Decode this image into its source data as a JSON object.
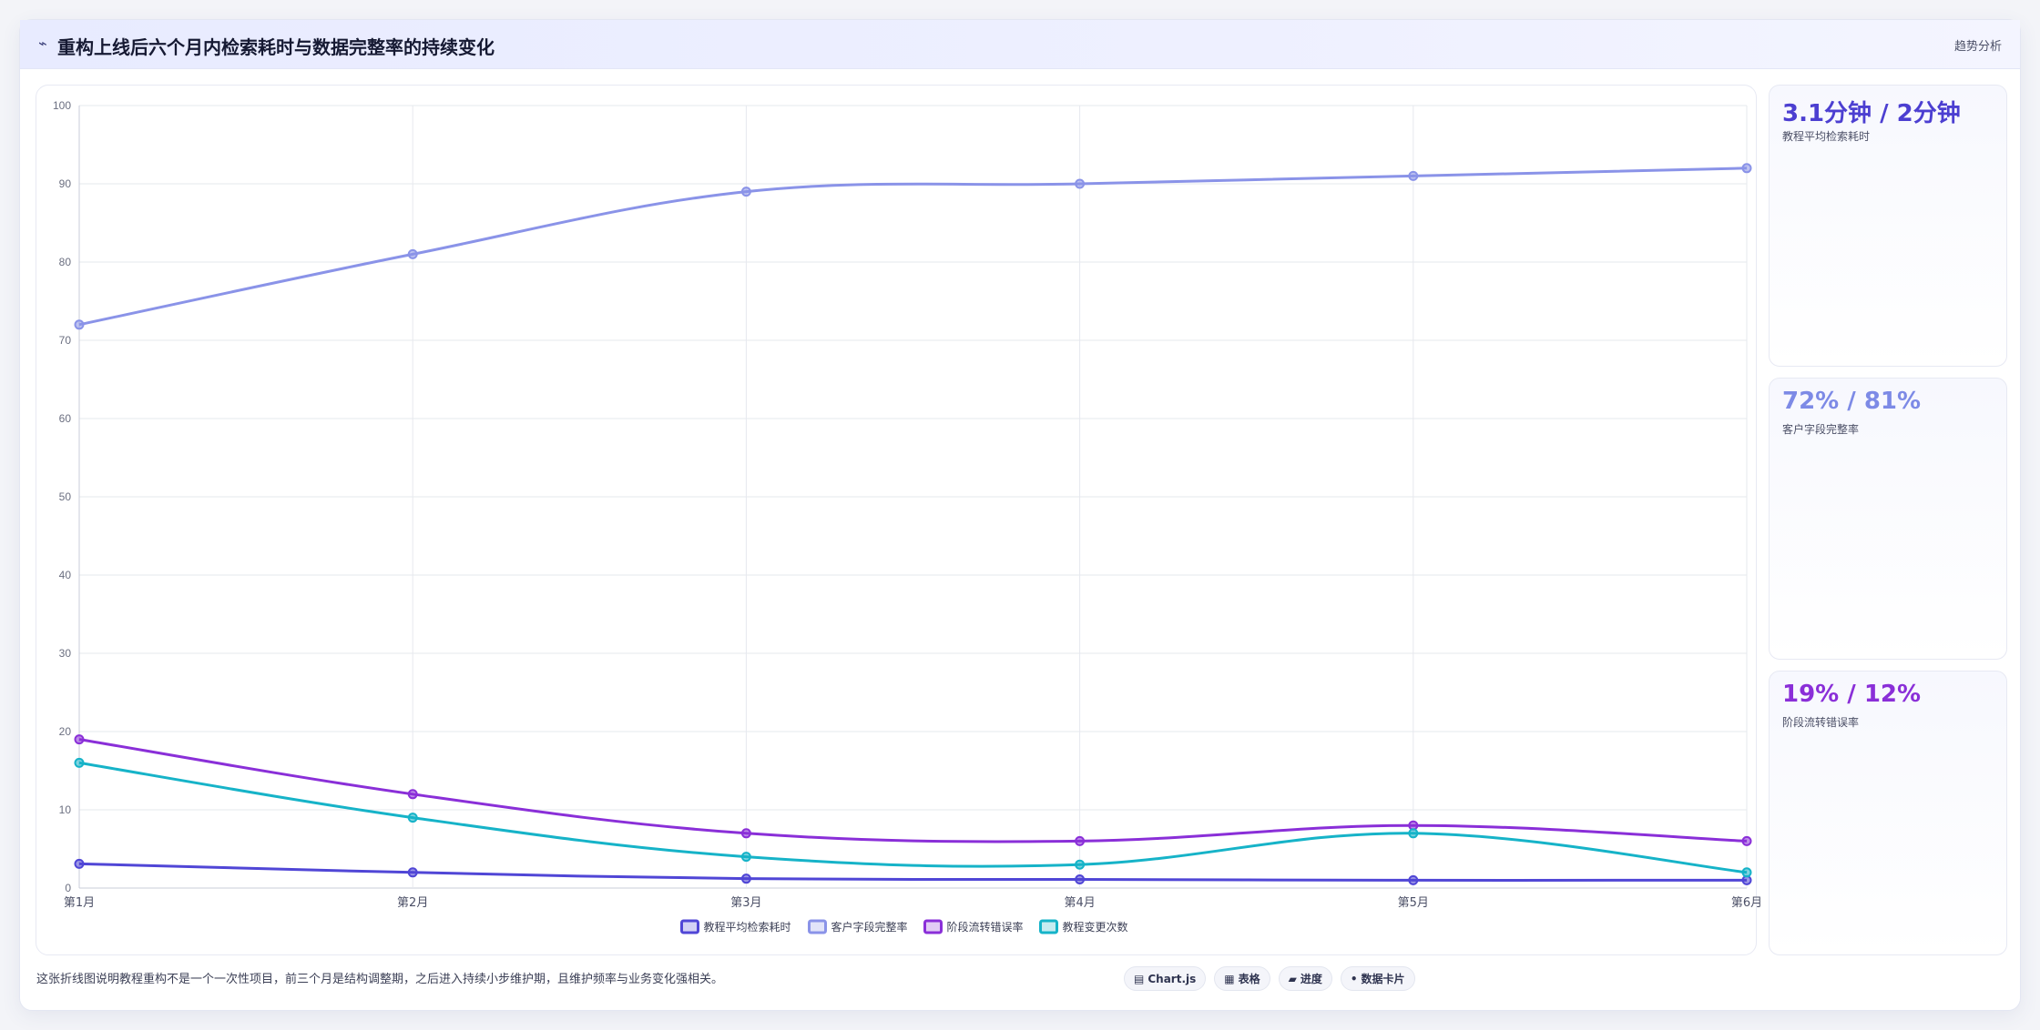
{
  "header": {
    "icon": "chart-line-icon",
    "title": "重构上线后六个月内检索耗时与数据完整率的持续变化",
    "tag": "趋势分析"
  },
  "chart_data": {
    "type": "line",
    "categories": [
      "第1月",
      "第2月",
      "第3月",
      "第4月",
      "第5月",
      "第6月"
    ],
    "ylim": [
      0,
      100
    ],
    "yticks": [
      0,
      10,
      20,
      30,
      40,
      50,
      60,
      70,
      80,
      90,
      100
    ],
    "grid": true,
    "legend_position": "bottom",
    "series": [
      {
        "name": "教程平均检索耗时",
        "color": "#5046d6",
        "values": [
          3.1,
          2,
          1.2,
          1.1,
          1,
          1
        ]
      },
      {
        "name": "客户字段完整率",
        "color": "#8a93e8",
        "values": [
          72,
          81,
          89,
          90,
          91,
          92
        ]
      },
      {
        "name": "阶段流转错误率",
        "color": "#8a2fd8",
        "values": [
          19,
          12,
          7,
          6,
          8,
          6
        ]
      },
      {
        "name": "教程变更次数",
        "color": "#16b3c8",
        "values": [
          16,
          9,
          4,
          3,
          7,
          2
        ]
      }
    ]
  },
  "cards": [
    {
      "value": "3.1分钟 / 2分钟",
      "label": "教程平均检索耗时",
      "color": "#4c3fd1"
    },
    {
      "value": "72% / 81%",
      "label": "客户字段完整率",
      "color": "#7d8ae6"
    },
    {
      "value": "19% / 12%",
      "label": "阶段流转错误率",
      "color": "#8a2fd8"
    }
  ],
  "footer": {
    "note": "这张折线图说明教程重构不是一个一次性项目，前三个月是结构调整期，之后进入持续小步维护期，且维护频率与业务变化强相关。",
    "chips": [
      {
        "icon": "chart-icon",
        "glyph": "▤",
        "label": "Chart.js"
      },
      {
        "icon": "table-icon",
        "glyph": "▦",
        "label": "表格"
      },
      {
        "icon": "progress-icon",
        "glyph": "▰",
        "label": "进度"
      },
      {
        "icon": "dot-icon",
        "glyph": "•",
        "label": "数据卡片"
      }
    ]
  }
}
